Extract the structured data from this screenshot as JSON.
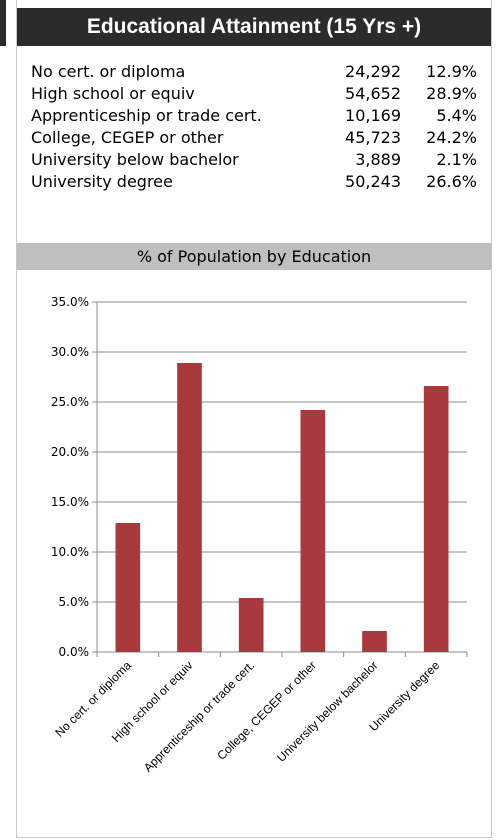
{
  "header": {
    "title": "Educational Attainment (15 Yrs +)"
  },
  "stats": [
    {
      "label": "No cert. or diploma",
      "count": "24,292",
      "pct": "12.9%"
    },
    {
      "label": "High school or equiv",
      "count": "54,652",
      "pct": "28.9%"
    },
    {
      "label": "Apprenticeship or trade cert.",
      "count": "10,169",
      "pct": "5.4%"
    },
    {
      "label": "College, CEGEP or other",
      "count": "45,723",
      "pct": "24.2%"
    },
    {
      "label": "University below bachelor",
      "count": "3,889",
      "pct": "2.1%"
    },
    {
      "label": "University degree",
      "count": "50,243",
      "pct": "26.6%"
    }
  ],
  "section": {
    "title": "% of Population by Education"
  },
  "chart_data": {
    "type": "bar",
    "title": "% of Population by Education",
    "categories": [
      "No cert. or diploma",
      "High school or equiv",
      "Apprenticeship or trade cert.",
      "College, CEGEP or other",
      "University below bachelor",
      "University degree"
    ],
    "values": [
      12.9,
      28.9,
      5.4,
      24.2,
      2.1,
      26.6
    ],
    "ylim": [
      0,
      35
    ],
    "yticks": [
      "0.0%",
      "5.0%",
      "10.0%",
      "15.0%",
      "20.0%",
      "25.0%",
      "30.0%",
      "35.0%"
    ],
    "grid": true,
    "bar_color": "#a83a3e",
    "xlabel": "",
    "ylabel": ""
  },
  "colors": {
    "header_bg": "#2b2b2b",
    "section_bg": "#bfbfbf",
    "bar": "#a83a3e"
  }
}
